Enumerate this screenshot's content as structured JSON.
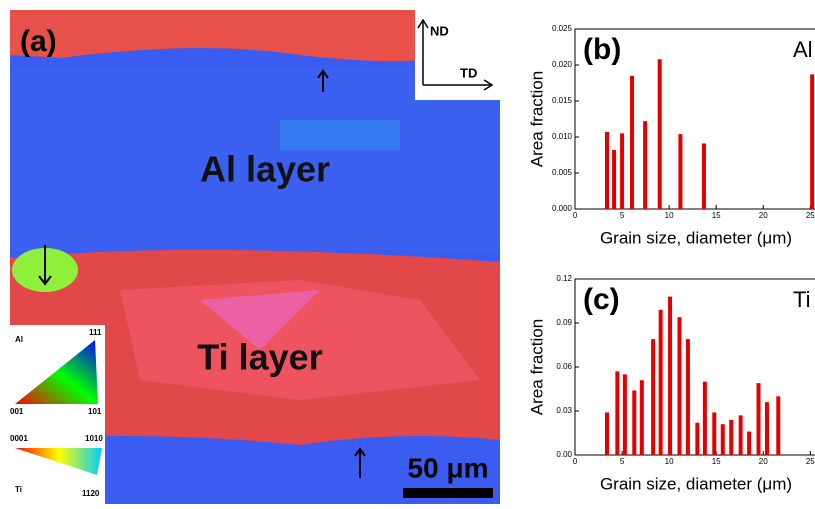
{
  "panel_a": {
    "label": "(a)",
    "al_layer": "Al layer",
    "ti_layer": "Ti layer",
    "scale_bar": "50 μm",
    "axes": {
      "nd": "ND",
      "td": "TD"
    },
    "ipf_al": {
      "name": "Al",
      "top": "111",
      "left": "001",
      "right": "101"
    },
    "ipf_ti": {
      "name": "Ti",
      "left": "0001",
      "right": "1010",
      "bottom": "1120"
    }
  },
  "chart_data": [
    {
      "type": "bar",
      "title": "(b)",
      "annotation": "Al",
      "x_label": "Grain size, diameter (μm)",
      "y_label": "Area fraction",
      "x": [
        3.4,
        4.15,
        5.0,
        6.06,
        7.45,
        9.0,
        11.2,
        13.7,
        25.2
      ],
      "values": [
        0.0107,
        0.0082,
        0.0105,
        0.0185,
        0.0122,
        0.0208,
        0.0104,
        0.0091,
        0.0187
      ],
      "color": "#e50000",
      "xlim": [
        0,
        25.5
      ],
      "xticks": [
        0,
        5,
        10,
        15,
        20,
        25
      ],
      "ylim": [
        0,
        0.025
      ],
      "yticks": [
        {
          "value": 0,
          "label": "0.000"
        },
        {
          "value": 0.005,
          "label": "0.005"
        },
        {
          "value": 0.01,
          "label": "0.010"
        },
        {
          "value": 0.015,
          "label": "0.015"
        },
        {
          "value": 0.02,
          "label": "0.020"
        },
        {
          "value": 0.025,
          "label": "0.025"
        }
      ]
    },
    {
      "type": "bar",
      "title": "(c)",
      "annotation": "Ti",
      "x_label": "Grain size, diameter (μm)",
      "y_label": "Area fraction",
      "x": [
        3.4,
        4.5,
        5.3,
        6.3,
        7.1,
        8.3,
        9.1,
        10.1,
        11.1,
        12.0,
        13.0,
        13.8,
        14.8,
        15.7,
        16.6,
        17.6,
        18.5,
        19.5,
        20.4,
        21.6
      ],
      "values": [
        0.029,
        0.057,
        0.055,
        0.044,
        0.051,
        0.079,
        0.099,
        0.108,
        0.094,
        0.079,
        0.022,
        0.05,
        0.029,
        0.021,
        0.024,
        0.027,
        0.016,
        0.049,
        0.036,
        0.04
      ],
      "color": "#e50000",
      "xlim": [
        0,
        25.5
      ],
      "xticks": [
        0,
        5,
        10,
        15,
        20,
        25
      ],
      "ylim": [
        0,
        0.12
      ],
      "yticks": [
        {
          "value": 0,
          "label": "0.00"
        },
        {
          "value": 0.03,
          "label": "0.03"
        },
        {
          "value": 0.06,
          "label": "0.06"
        },
        {
          "value": 0.09,
          "label": "0.09"
        },
        {
          "value": 0.12,
          "label": "0.12"
        }
      ]
    }
  ]
}
